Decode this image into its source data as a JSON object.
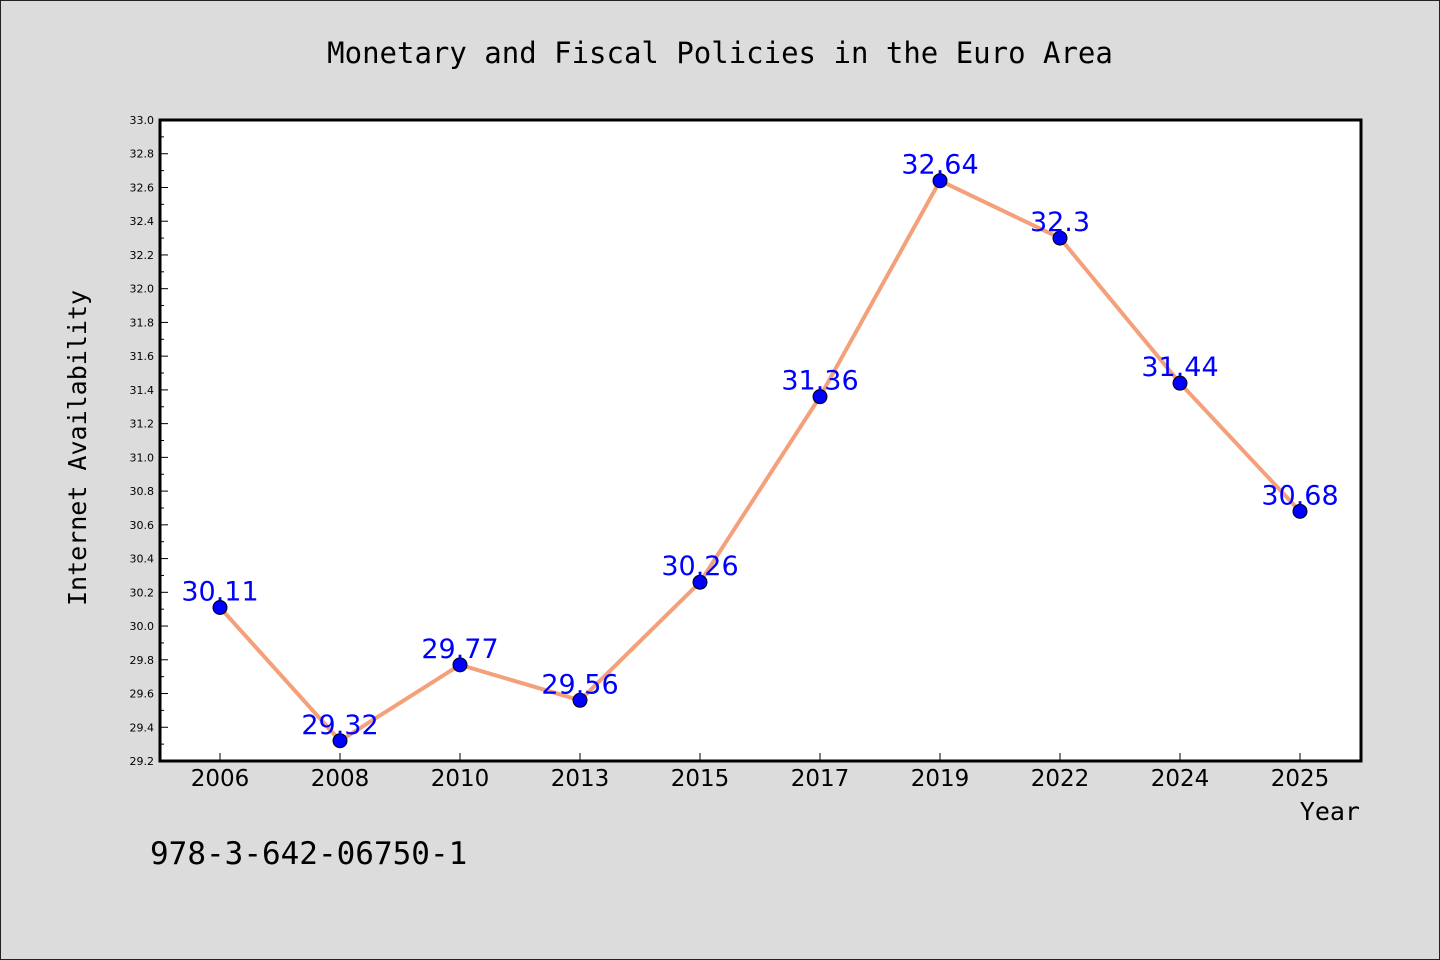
{
  "chart_data": {
    "type": "line",
    "title": "Monetary and Fiscal Policies in the Euro Area",
    "xlabel": "Year",
    "ylabel": "Internet Availability",
    "categories": [
      "2006",
      "2008",
      "2010",
      "2013",
      "2015",
      "2017",
      "2019",
      "2022",
      "2024",
      "2025"
    ],
    "values": [
      30.11,
      29.32,
      29.77,
      29.56,
      30.26,
      31.36,
      32.64,
      32.3,
      31.44,
      30.68
    ],
    "data_labels": [
      "30.11",
      "29.32",
      "29.77",
      "29.56",
      "30.26",
      "31.36",
      "32.64",
      "32.3",
      "31.44",
      "30.68"
    ],
    "ylim": [
      29.2,
      33.0
    ],
    "yticks": [
      "29.2",
      "29.4",
      "29.6",
      "29.8",
      "30.0",
      "30.2",
      "30.4",
      "30.6",
      "30.8",
      "31.0",
      "31.2",
      "31.4",
      "31.6",
      "31.8",
      "32.0",
      "32.2",
      "32.4",
      "32.6",
      "32.8",
      "33.0"
    ],
    "grid": false,
    "line_color": "#f4a07a",
    "marker_color": "#0000ff",
    "label_color": "#0000ff"
  },
  "footer_text": "978-3-642-06750-1"
}
